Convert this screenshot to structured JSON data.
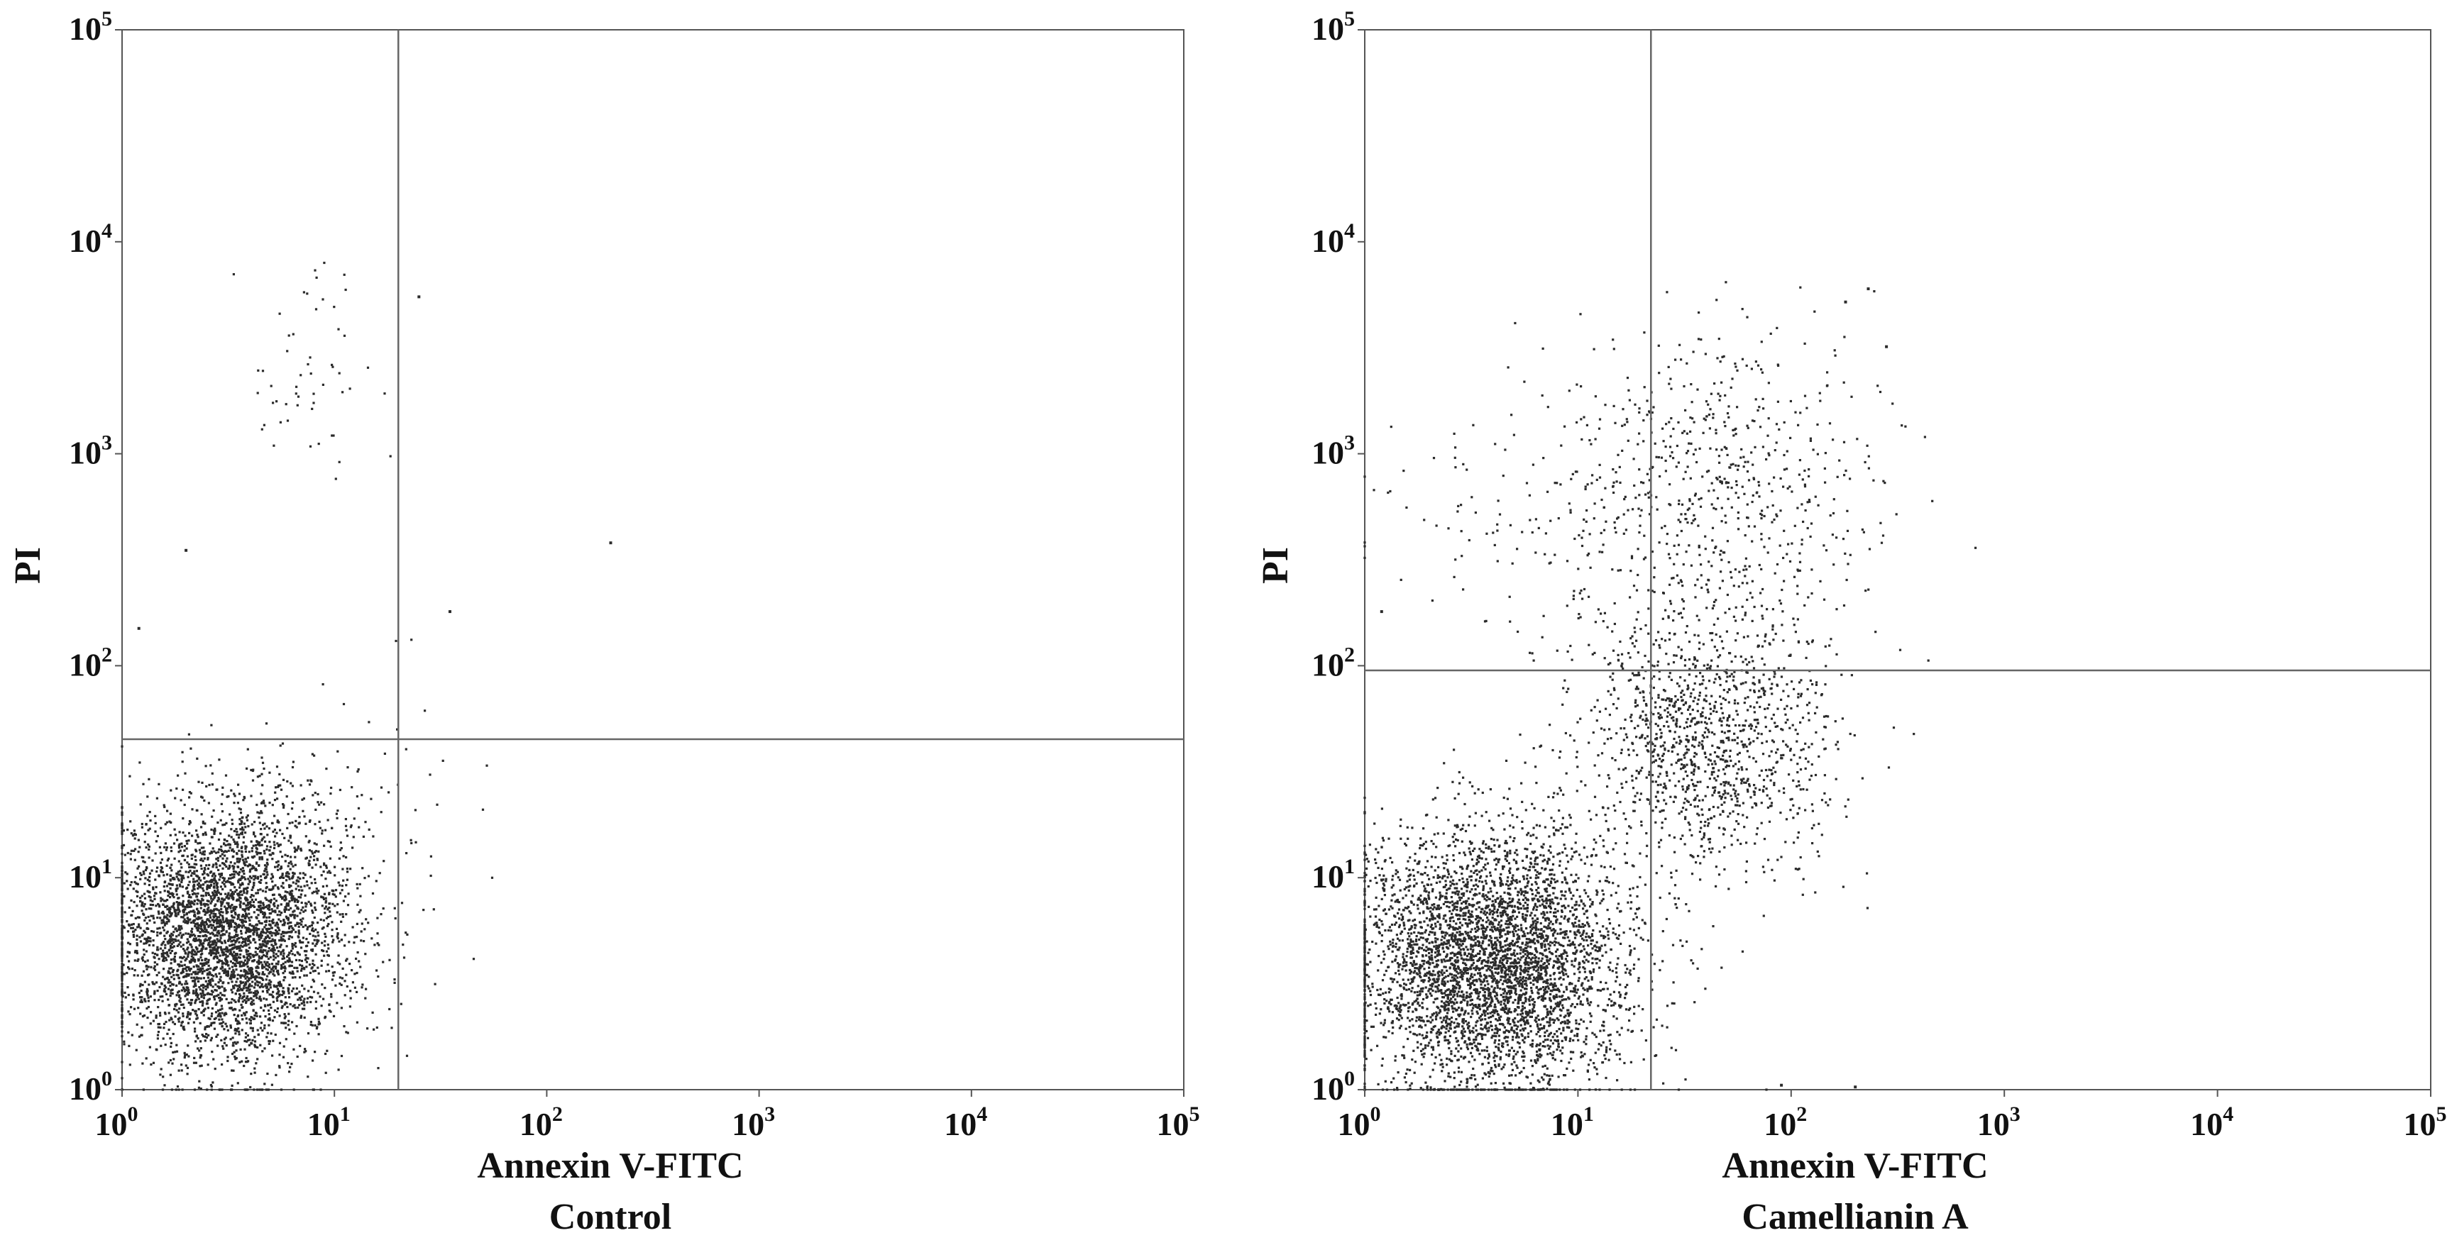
{
  "chart_data": [
    {
      "type": "scatter",
      "caption": "Control",
      "xlabel": "Annexin V-FITC",
      "ylabel": "PI",
      "x_scale": "log",
      "y_scale": "log",
      "xlim": [
        1,
        100000
      ],
      "ylim": [
        1,
        100000
      ],
      "x_ticks": [
        {
          "base": "10",
          "exp": "0"
        },
        {
          "base": "10",
          "exp": "1"
        },
        {
          "base": "10",
          "exp": "2"
        },
        {
          "base": "10",
          "exp": "3"
        },
        {
          "base": "10",
          "exp": "4"
        },
        {
          "base": "10",
          "exp": "5"
        }
      ],
      "y_ticks": [
        {
          "base": "10",
          "exp": "0"
        },
        {
          "base": "10",
          "exp": "1"
        },
        {
          "base": "10",
          "exp": "2"
        },
        {
          "base": "10",
          "exp": "3"
        },
        {
          "base": "10",
          "exp": "4"
        },
        {
          "base": "10",
          "exp": "5"
        }
      ],
      "gate": {
        "x": 20,
        "y": 45
      },
      "grid": false,
      "point_color": "#2b2b2b",
      "populations": [
        {
          "center": [
            3.2,
            5.5
          ],
          "spread_decades": [
            0.28,
            0.3
          ],
          "count": 4200
        },
        {
          "center": [
            8,
            2500
          ],
          "spread_decades": [
            0.15,
            0.3
          ],
          "count": 55
        },
        {
          "center": [
            15,
            15
          ],
          "spread_decades": [
            0.25,
            0.45
          ],
          "count": 70
        }
      ],
      "outliers": [
        [
          200,
          380
        ],
        [
          25,
          5500
        ],
        [
          2,
          350
        ],
        [
          1.2,
          150
        ],
        [
          35,
          180
        ]
      ]
    },
    {
      "type": "scatter",
      "caption": "Camellianin A",
      "xlabel": "Annexin V-FITC",
      "ylabel": "PI",
      "x_scale": "log",
      "y_scale": "log",
      "xlim": [
        1,
        100000
      ],
      "ylim": [
        1,
        100000
      ],
      "x_ticks": [
        {
          "base": "10",
          "exp": "0"
        },
        {
          "base": "10",
          "exp": "1"
        },
        {
          "base": "10",
          "exp": "2"
        },
        {
          "base": "10",
          "exp": "3"
        },
        {
          "base": "10",
          "exp": "4"
        },
        {
          "base": "10",
          "exp": "5"
        }
      ],
      "y_ticks": [
        {
          "base": "10",
          "exp": "0"
        },
        {
          "base": "10",
          "exp": "1"
        },
        {
          "base": "10",
          "exp": "2"
        },
        {
          "base": "10",
          "exp": "3"
        },
        {
          "base": "10",
          "exp": "4"
        },
        {
          "base": "10",
          "exp": "5"
        }
      ],
      "gate": {
        "x": 22,
        "y": 95
      },
      "grid": false,
      "point_color": "#2b2b2b",
      "populations": [
        {
          "center": [
            4,
            4
          ],
          "spread_decades": [
            0.32,
            0.3
          ],
          "count": 4400
        },
        {
          "center": [
            40,
            45
          ],
          "spread_decades": [
            0.3,
            0.32
          ],
          "count": 1300
        },
        {
          "center": [
            45,
            700
          ],
          "spread_decades": [
            0.38,
            0.38
          ],
          "count": 650
        },
        {
          "center": [
            6,
            600
          ],
          "spread_decades": [
            0.35,
            0.35
          ],
          "count": 120
        }
      ],
      "outliers": [
        [
          230,
          6000
        ],
        [
          280,
          3200
        ],
        [
          180,
          5200
        ],
        [
          1.2,
          180
        ],
        [
          90,
          1.05
        ],
        [
          200,
          1.03
        ]
      ]
    }
  ]
}
